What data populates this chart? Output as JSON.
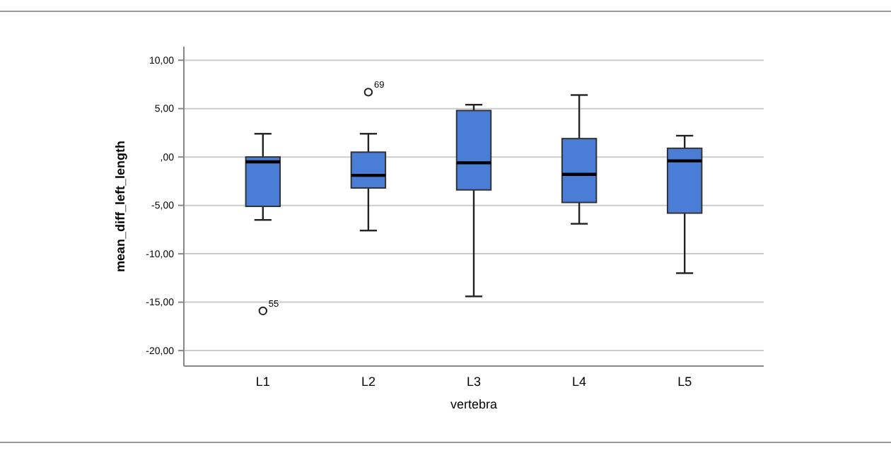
{
  "chart_data": {
    "type": "box",
    "xlabel": "vertebra",
    "ylabel": "mean_diff_left_length",
    "categories": [
      "L1",
      "L2",
      "L3",
      "L4",
      "L5"
    ],
    "color": "#4a7ed6",
    "boxes": [
      {
        "low": -6.5,
        "q1": -5.1,
        "median": -0.5,
        "q3": 0.0,
        "high": 2.4,
        "outliers": [
          -15.9
        ]
      },
      {
        "low": -7.6,
        "q1": -3.2,
        "median": -1.9,
        "q3": 0.5,
        "high": 2.4,
        "outliers": [
          6.7
        ]
      },
      {
        "low": -14.4,
        "q1": -3.4,
        "median": -0.6,
        "q3": 4.8,
        "high": 5.4
      },
      {
        "low": -6.9,
        "q1": -4.7,
        "median": -1.8,
        "q3": 1.9,
        "high": 6.4
      },
      {
        "low": -12.0,
        "q1": -5.8,
        "median": -0.4,
        "q3": 0.9,
        "high": 2.2
      }
    ],
    "ylim": [
      -21.6,
      11.4
    ],
    "yticks": [
      {
        "value": -20,
        "label": "-20,00"
      },
      {
        "value": -15,
        "label": "-15,00"
      },
      {
        "value": -10,
        "label": "-10,00"
      },
      {
        "value": -5,
        "label": "-5,00"
      },
      {
        "value": 0,
        "label": ",00"
      },
      {
        "value": 5,
        "label": "5,00"
      },
      {
        "value": 10,
        "label": "10,00"
      }
    ],
    "grid": "y",
    "annotations": [
      "55",
      "69"
    ]
  }
}
